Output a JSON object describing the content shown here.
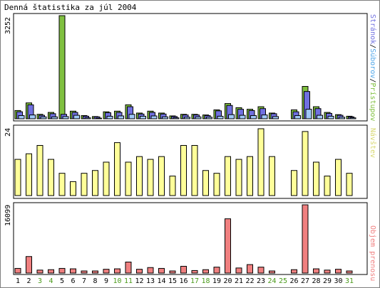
{
  "title": "Denná štatistika za júl 2004",
  "colors": {
    "pages": "#b0b0f0",
    "files": "#7070e0",
    "hits": "#80c040",
    "files_light": "#a0c8f8",
    "visits": "#ffff99",
    "volume": "#f08080",
    "weekend_label": "#4a9a1a",
    "weekday_label": "#000000",
    "label_hits": "#80c040",
    "label_files": "#4fa6e8",
    "label_pages": "#7070e0",
    "label_visits": "#d8d870",
    "label_volume": "#f08080"
  },
  "labels": {
    "top_max": "3252",
    "mid_max": "24",
    "bottom_max": "16099",
    "top_series": [
      "Stránok",
      "/",
      "Súborov",
      "/",
      "Prístupov"
    ],
    "mid_series": "Návštev",
    "bottom_series": "Objem prenosu"
  },
  "chart_data": [
    {
      "type": "bar",
      "title": "Denná štatistika za júl 2004",
      "categories": [
        "1",
        "2",
        "3",
        "4",
        "5",
        "6",
        "7",
        "8",
        "9",
        "10",
        "11",
        "12",
        "13",
        "14",
        "15",
        "16",
        "17",
        "18",
        "19",
        "20",
        "21",
        "22",
        "23",
        "24",
        "25",
        "26",
        "27",
        "28",
        "29",
        "30",
        "31"
      ],
      "weekend": [
        false,
        false,
        true,
        true,
        false,
        false,
        false,
        false,
        false,
        true,
        true,
        false,
        false,
        false,
        false,
        false,
        true,
        true,
        false,
        false,
        false,
        false,
        false,
        true,
        true,
        false,
        false,
        false,
        false,
        false,
        true
      ],
      "ylim": [
        0,
        3252
      ],
      "series": [
        {
          "name": "Prístupov",
          "values": [
            260,
            500,
            140,
            200,
            3252,
            240,
            100,
            70,
            220,
            240,
            440,
            180,
            240,
            180,
            90,
            140,
            140,
            120,
            280,
            480,
            350,
            300,
            380,
            180,
            0,
            280,
            1020,
            380,
            200,
            130,
            80
          ]
        },
        {
          "name": "Súborov",
          "values": [
            220,
            440,
            110,
            160,
            140,
            200,
            80,
            60,
            190,
            200,
            380,
            150,
            200,
            150,
            70,
            120,
            120,
            100,
            250,
            420,
            300,
            260,
            320,
            160,
            0,
            220,
            860,
            320,
            170,
            110,
            60
          ]
        },
        {
          "name": "Stránok",
          "values": [
            100,
            120,
            60,
            60,
            70,
            110,
            30,
            20,
            80,
            90,
            140,
            80,
            90,
            60,
            30,
            50,
            60,
            50,
            80,
            130,
            110,
            100,
            120,
            70,
            0,
            100,
            300,
            110,
            80,
            50,
            30
          ]
        }
      ]
    },
    {
      "type": "bar",
      "categories": [
        "1",
        "2",
        "3",
        "4",
        "5",
        "6",
        "7",
        "8",
        "9",
        "10",
        "11",
        "12",
        "13",
        "14",
        "15",
        "16",
        "17",
        "18",
        "19",
        "20",
        "21",
        "22",
        "23",
        "24",
        "25",
        "26",
        "27",
        "28",
        "29",
        "30",
        "31"
      ],
      "ylim": [
        0,
        24
      ],
      "series": [
        {
          "name": "Návštev",
          "values": [
            13,
            15,
            18,
            13,
            8,
            5,
            8,
            9,
            12,
            19,
            12,
            14,
            13,
            14,
            7,
            18,
            18,
            9,
            8,
            14,
            13,
            14,
            24,
            14,
            0,
            9,
            23,
            12,
            7,
            13,
            8
          ]
        }
      ]
    },
    {
      "type": "bar",
      "categories": [
        "1",
        "2",
        "3",
        "4",
        "5",
        "6",
        "7",
        "8",
        "9",
        "10",
        "11",
        "12",
        "13",
        "14",
        "15",
        "16",
        "17",
        "18",
        "19",
        "20",
        "21",
        "22",
        "23",
        "24",
        "25",
        "26",
        "27",
        "28",
        "29",
        "30",
        "31"
      ],
      "ylim": [
        0,
        16099
      ],
      "series": [
        {
          "name": "Objem prenosu",
          "values": [
            1100,
            3900,
            700,
            800,
            1100,
            1000,
            500,
            500,
            900,
            1000,
            2600,
            900,
            1300,
            1100,
            500,
            1600,
            600,
            800,
            1400,
            12800,
            1200,
            2000,
            1400,
            500,
            0,
            800,
            16099,
            1000,
            700,
            900,
            500
          ]
        }
      ]
    }
  ]
}
